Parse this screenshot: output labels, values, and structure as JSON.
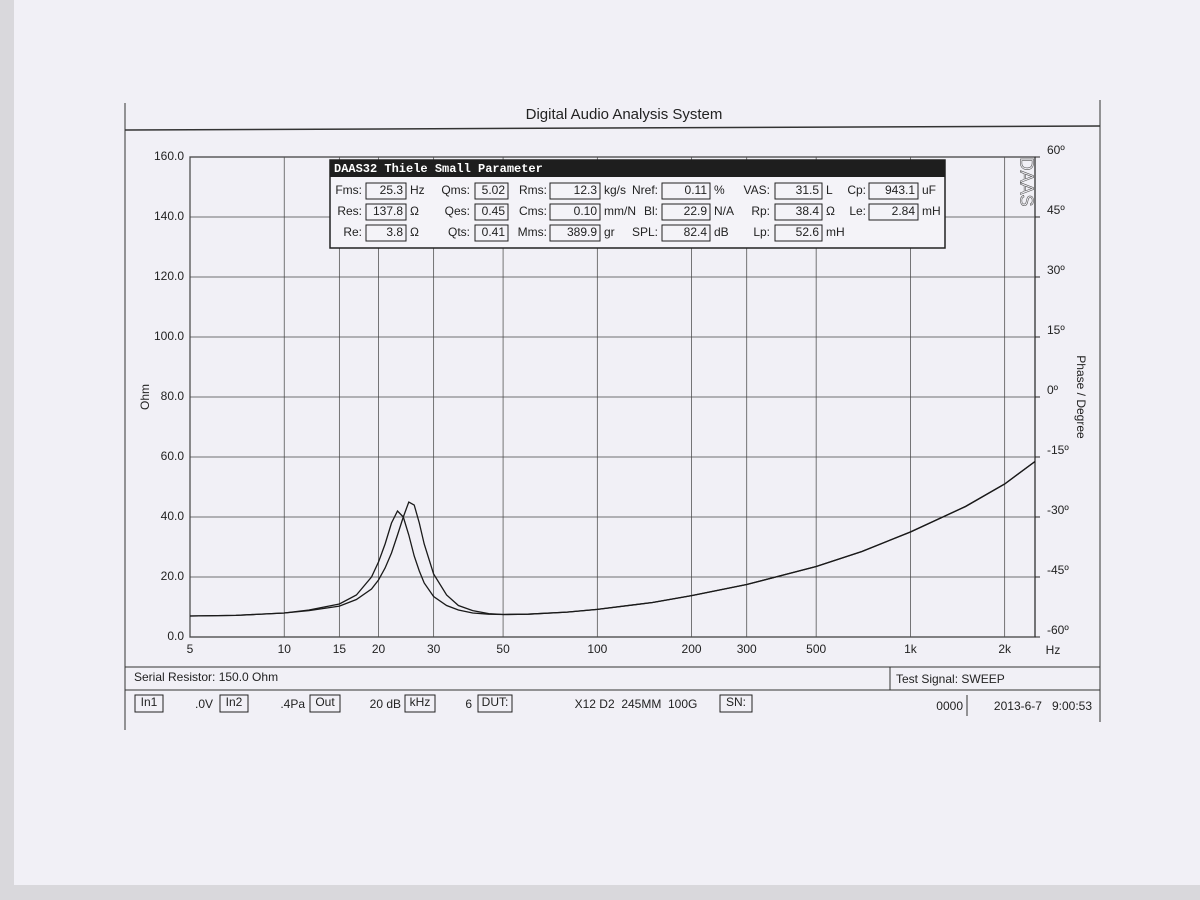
{
  "chart_data": {
    "type": "line",
    "title": "Digital Audio Analysis System",
    "ylabel": "Ohm",
    "y2label": "Phase / Degree",
    "xlabel": "Hz",
    "watermark": "DAAS",
    "xlog": true,
    "grid": true,
    "xlim": [
      5,
      2500
    ],
    "xticks": [
      5,
      10,
      15,
      20,
      30,
      50,
      100,
      200,
      300,
      500,
      {
        "value": 1000,
        "label": "1k"
      },
      {
        "value": 2000,
        "label": "2k"
      }
    ],
    "ylim": [
      0,
      160
    ],
    "yticks": [
      {
        "value": 0,
        "label": "0.0"
      },
      {
        "value": 20,
        "label": "20.0"
      },
      {
        "value": 40,
        "label": "40.0"
      },
      {
        "value": 60,
        "label": "60.0"
      },
      {
        "value": 80,
        "label": "80.0"
      },
      {
        "value": 100,
        "label": "100.0"
      },
      {
        "value": 120,
        "label": "120.0"
      },
      {
        "value": 140,
        "label": "140.0"
      },
      {
        "value": 160,
        "label": "160.0"
      }
    ],
    "y2lim": [
      -60,
      60
    ],
    "y2ticks": [
      {
        "value": 60,
        "label": "60º"
      },
      {
        "value": 45,
        "label": "45º"
      },
      {
        "value": 30,
        "label": "30º"
      },
      {
        "value": 15,
        "label": "15º"
      },
      {
        "value": 0,
        "label": "0º"
      },
      {
        "value": -15,
        "label": "-15º"
      },
      {
        "value": -30,
        "label": "-30º"
      },
      {
        "value": -45,
        "label": "-45º"
      },
      {
        "value": -60,
        "label": "-60º"
      }
    ],
    "x": [
      5,
      7,
      10,
      12,
      15,
      17,
      19,
      20,
      21,
      22,
      23,
      24,
      25,
      26,
      27,
      28,
      30,
      33,
      36,
      40,
      45,
      50,
      60,
      80,
      100,
      150,
      200,
      300,
      500,
      700,
      1000,
      1500,
      2000,
      2500
    ],
    "series": [
      {
        "color": "#1a1a1a",
        "values": [
          7,
          7.2,
          8,
          9,
          11,
          14,
          20,
          25,
          31,
          38,
          42,
          40,
          34,
          27,
          22,
          18,
          13.5,
          10.5,
          9,
          8,
          7.6,
          7.5,
          7.6,
          8.3,
          9.2,
          11.5,
          13.8,
          17.5,
          23.5,
          28.5,
          35,
          43.5,
          51,
          58.5
        ]
      },
      {
        "color": "#1a1a1a",
        "values": [
          7,
          7.2,
          8,
          8.8,
          10.3,
          12.5,
          16,
          19,
          23,
          28,
          34,
          40,
          45,
          44,
          38,
          31,
          21,
          14,
          10.5,
          8.8,
          7.8,
          7.5,
          7.6,
          8.3,
          9.2,
          11.5,
          13.8,
          17.5,
          23.5,
          28.5,
          35,
          43.5,
          51,
          58.5
        ]
      }
    ]
  },
  "parameter_panel": {
    "title": "DAAS32 Thiele Small Parameter",
    "rows": [
      [
        {
          "label": "Fms:",
          "value": "25.3",
          "unit": "Hz"
        },
        {
          "label": "Qms:",
          "value": "5.02"
        },
        {
          "label": "Rms:",
          "value": "12.3",
          "unit": "kg/s"
        },
        {
          "label": "Nref:",
          "value": "0.11",
          "unit": "%"
        },
        {
          "label": "VAS:",
          "value": "31.5",
          "unit": "L"
        },
        {
          "label": "Cp:",
          "value": "943.1",
          "unit": "uF"
        }
      ],
      [
        {
          "label": "Res:",
          "value": "137.8",
          "unit": "Ω"
        },
        {
          "label": "Qes:",
          "value": "0.45"
        },
        {
          "label": "Cms:",
          "value": "0.10",
          "unit": "mm/N"
        },
        {
          "label": "Bl:",
          "value": "22.9",
          "unit": "N/A"
        },
        {
          "label": "Rp:",
          "value": "38.4",
          "unit": "Ω"
        },
        {
          "label": "Le:",
          "value": "2.84",
          "unit": "mH"
        }
      ],
      [
        {
          "label": "Re:",
          "value": "3.8",
          "unit": "Ω"
        },
        {
          "label": "Qts:",
          "value": "0.41"
        },
        {
          "label": "Mms:",
          "value": "389.9",
          "unit": "gr"
        },
        {
          "label": "SPL:",
          "value": "82.4",
          "unit": "dB"
        },
        {
          "label": "Lp:",
          "value": "52.6",
          "unit": "mH"
        }
      ]
    ]
  },
  "footer": {
    "serial_resistor": "Serial Resistor: 150.0 Ohm",
    "test_signal": "Test Signal: SWEEP",
    "in1": "In1",
    "in1_value": ".0V",
    "in2": "In2",
    "in2_value": ".4Pa",
    "out": "Out",
    "out_value": "20 dB",
    "khz": "kHz",
    "khz_value": "6",
    "dut": "DUT:",
    "dut_value": "X12 D2  245MM  100G",
    "sn": "SN:",
    "counter": "0000",
    "timestamp": "2013-6-7   9:00:53"
  }
}
